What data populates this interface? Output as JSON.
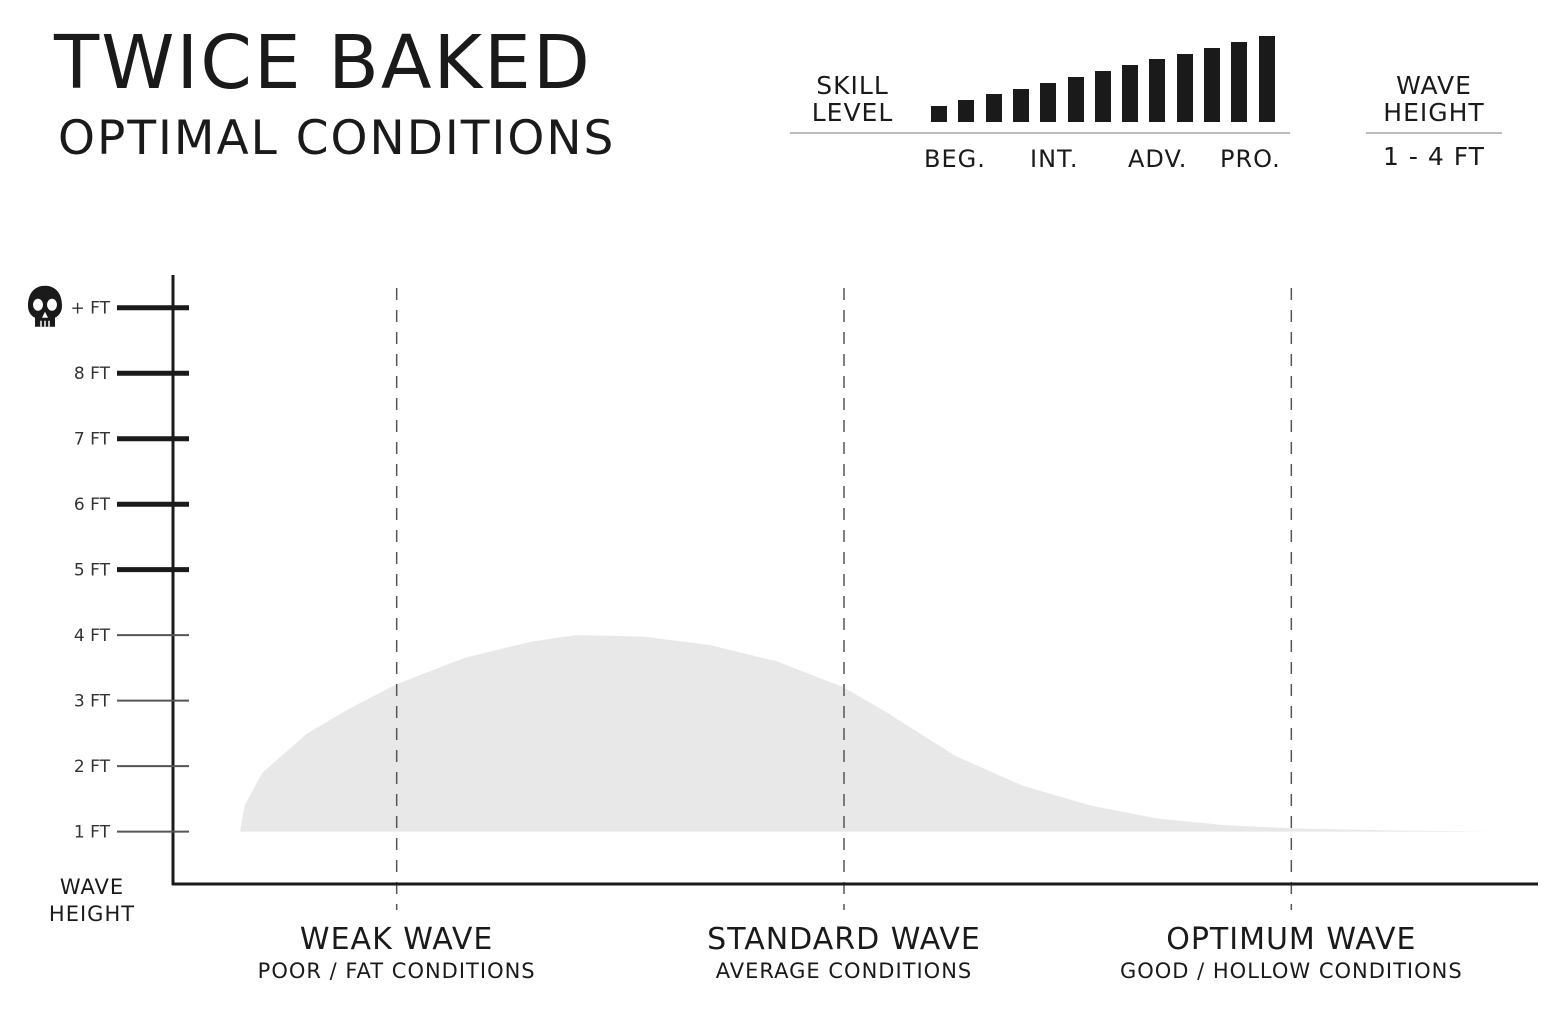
{
  "header": {
    "title": "TWICE BAKED",
    "subtitle": "OPTIMAL CONDITIONS"
  },
  "skill": {
    "label_line1": "SKILL",
    "label_line2": "LEVEL",
    "bar_count": 13,
    "tiers": [
      "BEG.",
      "INT.",
      "ADV.",
      "PRO."
    ]
  },
  "wave_height_badge": {
    "label_line1": "WAVE",
    "label_line2": "HEIGHT",
    "value": "1 - 4 FT"
  },
  "chart_data": {
    "type": "area",
    "title": "",
    "ylabel_line1": "WAVE",
    "ylabel_line2": "HEIGHT",
    "y_ticks": [
      {
        "value": 1,
        "label": "1 FT"
      },
      {
        "value": 2,
        "label": "2 FT"
      },
      {
        "value": 3,
        "label": "3 FT"
      },
      {
        "value": 4,
        "label": "4 FT"
      },
      {
        "value": 5,
        "label": "5 FT"
      },
      {
        "value": 6,
        "label": "6 FT"
      },
      {
        "value": 7,
        "label": "7 FT"
      },
      {
        "value": 8,
        "label": "8 FT"
      },
      {
        "value": 9,
        "label": "+ FT",
        "icon": "skull-icon"
      }
    ],
    "ylim": [
      0.2,
      9.5
    ],
    "xlim": [
      0,
      3
    ],
    "categories": [
      {
        "title": "WEAK WAVE",
        "subtitle": "POOR / FAT CONDITIONS",
        "x": 0.5
      },
      {
        "title": "STANDARD WAVE",
        "subtitle": "AVERAGE CONDITIONS",
        "x": 1.5
      },
      {
        "title": "OPTIMUM WAVE",
        "subtitle": "GOOD / HOLLOW CONDITIONS",
        "x": 2.5
      }
    ],
    "baseline": 1,
    "series": [
      {
        "points": [
          [
            0.15,
            1.0
          ],
          [
            0.16,
            1.4
          ],
          [
            0.2,
            1.9
          ],
          [
            0.3,
            2.5
          ],
          [
            0.4,
            2.9
          ],
          [
            0.5,
            3.25
          ],
          [
            0.65,
            3.65
          ],
          [
            0.8,
            3.9
          ],
          [
            0.9,
            4.0
          ],
          [
            1.05,
            3.98
          ],
          [
            1.2,
            3.85
          ],
          [
            1.35,
            3.6
          ],
          [
            1.5,
            3.2
          ],
          [
            1.6,
            2.8
          ],
          [
            1.75,
            2.15
          ],
          [
            1.9,
            1.7
          ],
          [
            2.05,
            1.4
          ],
          [
            2.2,
            1.2
          ],
          [
            2.35,
            1.1
          ],
          [
            2.5,
            1.05
          ],
          [
            2.7,
            1.02
          ],
          [
            2.95,
            1.0
          ]
        ]
      }
    ],
    "colors": {
      "fill": "#e8e8e8",
      "axis": "#1a1a1a",
      "grid": "#555555"
    }
  }
}
